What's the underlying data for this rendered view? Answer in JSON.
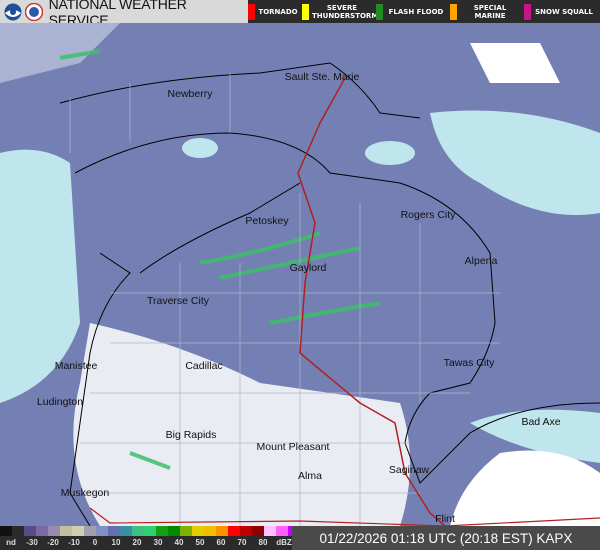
{
  "header": {
    "title": "NATIONAL WEATHER SERVICE",
    "warnings": [
      {
        "label": "TORNADO",
        "color": "#ff0000"
      },
      {
        "label": "SEVERE THUNDERSTORM",
        "color": "#ffff00"
      },
      {
        "label": "FLASH FLOOD",
        "color": "#228b22"
      },
      {
        "label": "SPECIAL MARINE",
        "color": "#ffa500"
      },
      {
        "label": "SNOW SQUALL",
        "color": "#c71585"
      }
    ]
  },
  "map": {
    "cities": [
      {
        "name": "Newberry"
      },
      {
        "name": "Sault Ste. Marie"
      },
      {
        "name": "Petoskey"
      },
      {
        "name": "Rogers City"
      },
      {
        "name": "Alpena"
      },
      {
        "name": "Gaylord"
      },
      {
        "name": "Traverse City"
      },
      {
        "name": "Manistee"
      },
      {
        "name": "Cadillac"
      },
      {
        "name": "Tawas City"
      },
      {
        "name": "Ludington"
      },
      {
        "name": "Big Rapids"
      },
      {
        "name": "Mount Pleasant"
      },
      {
        "name": "Bad Axe"
      },
      {
        "name": "Alma"
      },
      {
        "name": "Saginaw"
      },
      {
        "name": "Muskegon"
      },
      {
        "name": "Flint"
      }
    ]
  },
  "legend": {
    "ticks": [
      "nd",
      "-30",
      "-20",
      "-10",
      "0",
      "10",
      "20",
      "30",
      "40",
      "50",
      "60",
      "70",
      "80",
      "dBZ"
    ],
    "colors": [
      "#111111",
      "#2a2a2a",
      "#5b4a8a",
      "#7a6aa0",
      "#9a8ab0",
      "#c0c0a0",
      "#d0d0b0",
      "#a0a0b0",
      "#8090c0",
      "#6070b0",
      "#3a90a0",
      "#40c080",
      "#30d070",
      "#10a010",
      "#008800",
      "#80b000",
      "#e0d000",
      "#f0c000",
      "#ff9000",
      "#ff0000",
      "#c00000",
      "#900000",
      "#ffc0ff",
      "#ff60ff",
      "#c000ff",
      "#9000e0",
      "#00e0f0",
      "#3030d0"
    ],
    "timestamp": "01/22/2026 01:18 UTC (20:18 EST) KAPX"
  }
}
